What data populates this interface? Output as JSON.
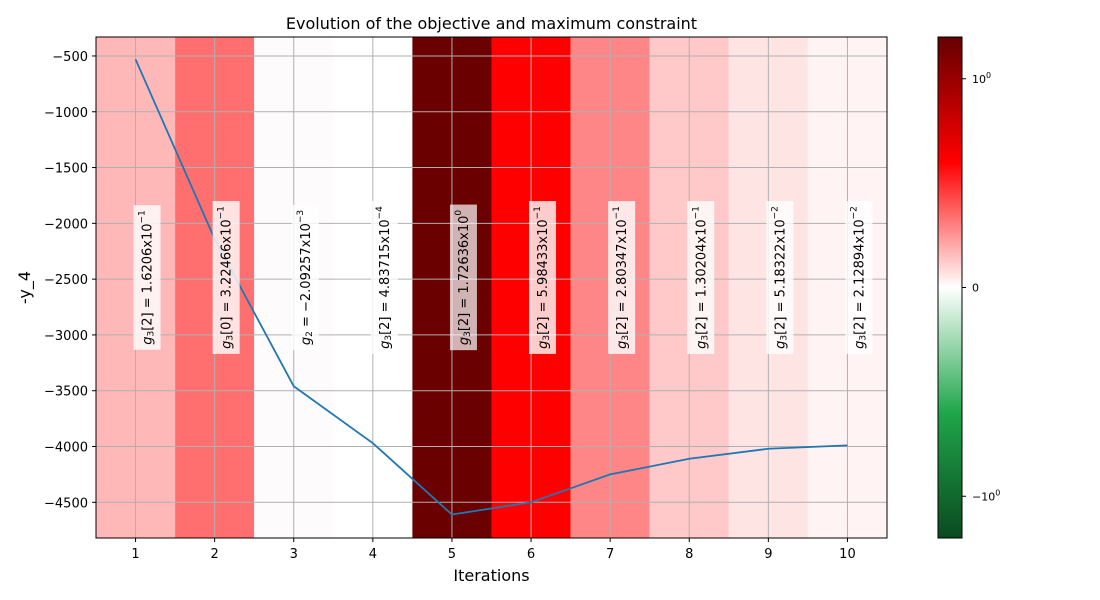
{
  "chart_data": {
    "type": "line",
    "title": "Evolution of the objective and maximum constraint",
    "xlabel": "Iterations",
    "ylabel": "-y_4",
    "x": [
      1,
      2,
      3,
      4,
      5,
      6,
      7,
      8,
      9,
      10
    ],
    "xlim": [
      0.5,
      10.5
    ],
    "ylim": [
      -4820,
      -330
    ],
    "yticks": [
      -500,
      -1000,
      -1500,
      -2000,
      -2500,
      -3000,
      -3500,
      -4000,
      -4500
    ],
    "ytick_labels": [
      "−500",
      "−1000",
      "−1500",
      "−2000",
      "−2500",
      "−3000",
      "−3500",
      "−4000",
      "−4500"
    ],
    "xtick_labels": [
      "1",
      "2",
      "3",
      "4",
      "5",
      "6",
      "7",
      "8",
      "9",
      "10"
    ],
    "grid": true,
    "series": [
      {
        "values": [
          -530,
          -2140,
          -3460,
          -3970,
          -4610,
          -4500,
          -4250,
          -4110,
          -4020,
          -3990
        ],
        "color": "#1f77b4"
      }
    ],
    "background_constraint": {
      "values": [
        0.16206,
        0.322466,
        -0.00209257,
        0.000483715,
        1.72636,
        0.598433,
        0.280347,
        0.130204,
        0.0518322,
        0.0212894
      ],
      "colors": [
        "#ffb8b8",
        "#ff6f6f",
        "#fdfbfb",
        "#ffffff",
        "#6a0000",
        "#ff0000",
        "#ff8686",
        "#ffc9c9",
        "#ffe4e4",
        "#fff3f3"
      ]
    },
    "annotations": [
      {
        "base": "g",
        "sub": "3",
        "idx": "[2]",
        "value": " = 1.6206x10",
        "exp": "−1"
      },
      {
        "base": "g",
        "sub": "3",
        "idx": "[0]",
        "value": " = 3.22466x10",
        "exp": "−1"
      },
      {
        "base": "g",
        "sub": "2",
        "idx": "",
        "value": " = −2.09257x10",
        "exp": "−3"
      },
      {
        "base": "g",
        "sub": "3",
        "idx": "[2]",
        "value": " = 4.83715x10",
        "exp": "−4"
      },
      {
        "base": "g",
        "sub": "3",
        "idx": "[2]",
        "value": " = 1.72636x10",
        "exp": "0"
      },
      {
        "base": "g",
        "sub": "3",
        "idx": "[2]",
        "value": " = 5.98433x10",
        "exp": "−1"
      },
      {
        "base": "g",
        "sub": "3",
        "idx": "[2]",
        "value": " = 2.80347x10",
        "exp": "−1"
      },
      {
        "base": "g",
        "sub": "3",
        "idx": "[2]",
        "value": " = 1.30204x10",
        "exp": "−1"
      },
      {
        "base": "g",
        "sub": "3",
        "idx": "[2]",
        "value": " = 5.18322x10",
        "exp": "−2"
      },
      {
        "base": "g",
        "sub": "3",
        "idx": "[2]",
        "value": " = 2.12894x10",
        "exp": "−2"
      }
    ],
    "colorbar": {
      "ticks": [
        {
          "base": "10",
          "exp": "0",
          "value": 1
        },
        {
          "base": "0",
          "exp": "",
          "value": 0
        },
        {
          "base": "−10",
          "exp": "0",
          "value": -1
        }
      ],
      "gradient": [
        "#0b4a20",
        "#1fa64a",
        "#ffffff",
        "#ff0000",
        "#650000"
      ]
    }
  }
}
